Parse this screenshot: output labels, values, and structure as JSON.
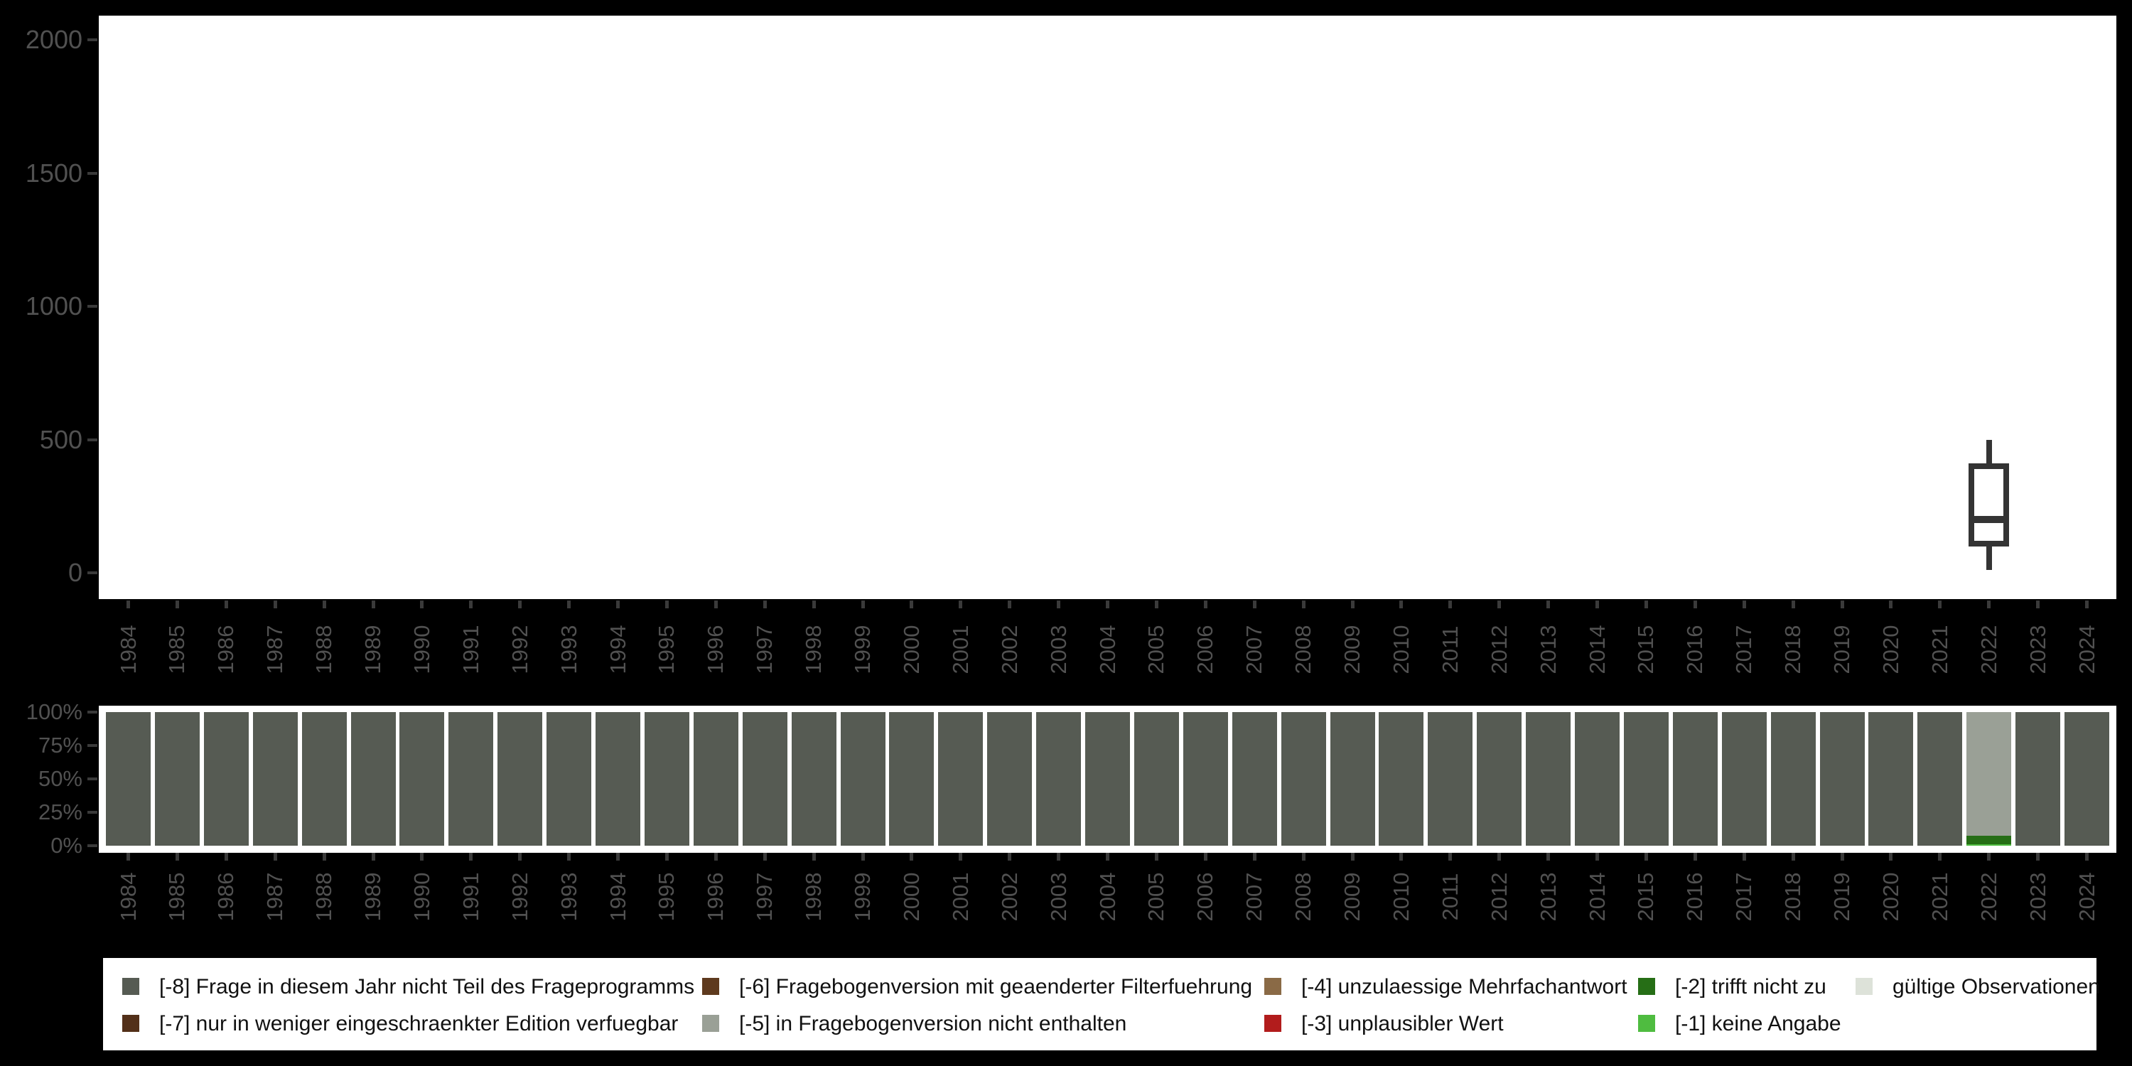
{
  "background_color": "#000000",
  "plot_background_color": "#ffffff",
  "axis_label_color": "#515151",
  "tick_color": "#3a3a3a",
  "years": [
    "1984",
    "1985",
    "1986",
    "1987",
    "1988",
    "1989",
    "1990",
    "1991",
    "1992",
    "1993",
    "1994",
    "1995",
    "1996",
    "1997",
    "1998",
    "1999",
    "2000",
    "2001",
    "2002",
    "2003",
    "2004",
    "2005",
    "2006",
    "2007",
    "2008",
    "2009",
    "2010",
    "2011",
    "2012",
    "2013",
    "2014",
    "2015",
    "2016",
    "2017",
    "2018",
    "2019",
    "2020",
    "2021",
    "2022",
    "2023",
    "2024"
  ],
  "colors": {
    "-8": "#565B53",
    "-7": "#533019",
    "-6": "#5E3A1E",
    "-5": "#9AA096",
    "-4": "#8A6A46",
    "-3": "#B21C1C",
    "-2": "#266E16",
    "-1": "#4FBC40",
    "valid": "#DDE2D9"
  },
  "chart_data": [
    {
      "type": "boxplot",
      "title": "",
      "xlabel": "",
      "ylabel": "",
      "categories": "years (1984-2024)",
      "ylim": [
        0,
        2000
      ],
      "yticks": [
        0,
        500,
        1000,
        1500,
        2000
      ],
      "grid": false,
      "boxes": [
        {
          "year": "2022",
          "whisker_low": 10,
          "q1": 100,
          "median": 200,
          "q3": 410,
          "whisker_high": 500,
          "stroke_color": "#343434"
        }
      ]
    },
    {
      "type": "bar",
      "subtype": "stacked-100-percent",
      "title": "",
      "xlabel": "",
      "ylabel": "",
      "categories": "years (1984-2024)",
      "ylim": [
        0,
        100
      ],
      "ytick_labels": [
        "100%",
        "75%",
        "50%",
        "25%",
        "0%"
      ],
      "grid": false,
      "default_composition": [
        {
          "key": "-8",
          "pct": 100
        }
      ],
      "overrides": {
        "2022": [
          {
            "key": "-5",
            "pct": 92.6
          },
          {
            "key": "-2",
            "pct": 6.4
          },
          {
            "key": "-1",
            "pct": 1.0
          }
        ]
      }
    }
  ],
  "legend": {
    "text_color": "#111111",
    "rows": [
      [
        {
          "key": "-8",
          "label": "[-8] Frage in diesem Jahr nicht Teil des Frageprogramms"
        },
        {
          "key": "-6",
          "label": "[-6] Fragebogenversion mit geaenderter Filterfuehrung"
        },
        {
          "key": "-4",
          "label": "[-4] unzulaessige Mehrfachantwort"
        },
        {
          "key": "-2",
          "label": "[-2] trifft nicht zu"
        },
        {
          "key": "valid",
          "label": "gültige Observationen"
        }
      ],
      [
        {
          "key": "-7",
          "label": "[-7] nur in weniger eingeschraenkter Edition verfuegbar"
        },
        {
          "key": "-5",
          "label": "[-5] in Fragebogenversion nicht enthalten"
        },
        {
          "key": "-3",
          "label": "[-3] unplausibler Wert"
        },
        {
          "key": "-1",
          "label": "[-1] keine Angabe"
        }
      ]
    ]
  }
}
